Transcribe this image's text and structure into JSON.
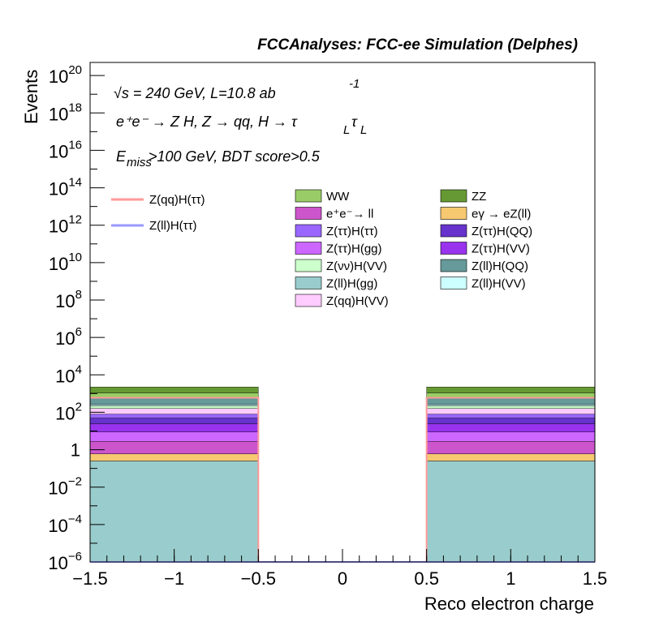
{
  "chart_data": {
    "type": "bar",
    "title": "FCCAnalyses: FCC-ee Simulation (Delphes)",
    "xlabel": "Reco electron charge",
    "ylabel": "Events",
    "xlim": [
      -1.5,
      1.5
    ],
    "ylim_log10": [
      -6,
      20.7
    ],
    "log_y": true,
    "x_ticks": [
      "−1.5",
      "−1",
      "−0.5",
      "0",
      "0.5",
      "1",
      "1.5"
    ],
    "x_tick_values": [
      -1.5,
      -1,
      -0.5,
      0,
      0.5,
      1,
      1.5
    ],
    "y_ticks": [
      {
        "v": -6,
        "base": "10",
        "exp": "−6"
      },
      {
        "v": -4,
        "base": "10",
        "exp": "−4"
      },
      {
        "v": -2,
        "base": "10",
        "exp": "−2"
      },
      {
        "v": 0,
        "base": "1",
        "exp": ""
      },
      {
        "v": 2,
        "base": "10",
        "exp": "2"
      },
      {
        "v": 4,
        "base": "10",
        "exp": "4"
      },
      {
        "v": 6,
        "base": "10",
        "exp": "6"
      },
      {
        "v": 8,
        "base": "10",
        "exp": "8"
      },
      {
        "v": 10,
        "base": "10",
        "exp": "10"
      },
      {
        "v": 12,
        "base": "10",
        "exp": "12"
      },
      {
        "v": 14,
        "base": "10",
        "exp": "14"
      },
      {
        "v": 16,
        "base": "10",
        "exp": "16"
      },
      {
        "v": 18,
        "base": "10",
        "exp": "18"
      },
      {
        "v": 20,
        "base": "10",
        "exp": "20"
      }
    ],
    "annotations": {
      "energy": "√s = 240 GeV, L=10.8 ab",
      "energy_exp": "-1",
      "process": "e⁺e⁻ → Z H, Z  → qq, H  → τ",
      "process_sub1": "L",
      "process_tau2": "τ",
      "process_sub2": "L",
      "cut_pre": "E",
      "cut_sub": "miss",
      "cut_post": ">100 GeV, BDT score>0.5"
    },
    "bins": [
      {
        "low": -1.5,
        "high": -0.5
      },
      {
        "low": -0.5,
        "high": 0.5
      },
      {
        "low": 0.5,
        "high": 1.5
      }
    ],
    "stack": [
      {
        "name": "Z(ll)H(gg)",
        "color": "#99cccc",
        "values": [
          0.25,
          0,
          0.25
        ]
      },
      {
        "name": "eγ → eZ(ll)",
        "color": "#f6c870",
        "values": [
          0.35,
          0,
          0.35
        ]
      },
      {
        "name": "e⁺e⁻→ ll",
        "color": "#cc55cc",
        "values": [
          2.2,
          0,
          2.2
        ]
      },
      {
        "name": "Z(ττ)H(gg)",
        "color": "#cc66ff",
        "values": [
          6,
          0,
          6
        ]
      },
      {
        "name": "Z(ττ)H(VV)",
        "color": "#9933ee",
        "values": [
          15,
          0,
          15
        ]
      },
      {
        "name": "Z(ττ)H(QQ)",
        "color": "#6633cc",
        "values": [
          25,
          0,
          25
        ]
      },
      {
        "name": "Z(ττ)H(ττ)",
        "color": "#9966ff",
        "values": [
          30,
          0,
          30
        ]
      },
      {
        "name": "Z(qq)H(VV)",
        "color": "#ffccff",
        "values": [
          80,
          0,
          80
        ]
      },
      {
        "name": "Z(νν)H(VV)",
        "color": "#ccffcc",
        "values": [
          60,
          0,
          60
        ]
      },
      {
        "name": "Z(ll)H(VV)",
        "color": "#ccffff",
        "values": [
          40,
          0,
          40
        ]
      },
      {
        "name": "Z(ll)H(QQ)",
        "color": "#669999",
        "values": [
          300,
          0,
          300
        ]
      },
      {
        "name": "WW",
        "color": "#99cc66",
        "values": [
          500,
          0,
          500
        ]
      },
      {
        "name": "ZZ",
        "color": "#669933",
        "values": [
          1200,
          0,
          1200
        ]
      }
    ],
    "signals": [
      {
        "name": "Z(qq)H(ττ)",
        "color": "#ff9999",
        "values": [
          600,
          0,
          600
        ]
      },
      {
        "name": "Z(ll)H(ττ)",
        "color": "#9999ff",
        "values": [
          1e-06,
          1e-06,
          1e-06
        ]
      }
    ],
    "legend": {
      "signals": [
        "Z(qq)H(ττ)",
        "Z(ll)H(ττ)"
      ],
      "col1": [
        "WW",
        "e⁺e⁻→ ll",
        "Z(ττ)H(ττ)",
        "Z(ττ)H(gg)",
        "Z(νν)H(VV)",
        "Z(ll)H(gg)",
        "Z(qq)H(VV)"
      ],
      "col2": [
        "ZZ",
        "eγ → eZ(ll)",
        "Z(ττ)H(QQ)",
        "Z(ττ)H(VV)",
        "Z(ll)H(QQ)",
        "Z(ll)H(VV)"
      ]
    }
  }
}
